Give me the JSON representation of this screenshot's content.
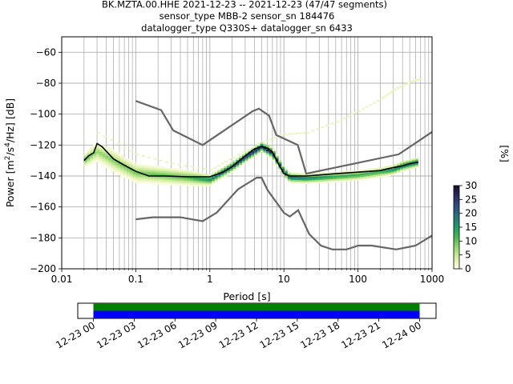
{
  "titles": [
    "BK.MZTA.00.HHE   2021-12-23 -- 2021-12-23  (47/47 segments)",
    "sensor_type MBB-2 sensor_sn 184476",
    "datalogger_type Q330S+ datalogger_sn 6433"
  ],
  "colors": {
    "nlnm_nhnm": "#666666",
    "mode_line": "#000000",
    "grid": "#b0b0b0",
    "coverage_green": "#008000",
    "coverage_blue": "#0000ff"
  },
  "colorbar": {
    "label": "[%]",
    "min": 0,
    "max": 30,
    "ticks": [
      "0",
      "5",
      "10",
      "15",
      "20",
      "25",
      "30"
    ],
    "colormap": [
      "#fefee6",
      "#d8efa6",
      "#98d873",
      "#4cb853",
      "#1f9a6a",
      "#26767a",
      "#2e4f81",
      "#2c2d63",
      "#1c0a2e"
    ]
  },
  "chart_data": {
    "type": "heatmap",
    "title": "BK.MZTA.00.HHE   2021-12-23 -- 2021-12-23  (47/47 segments)",
    "xlabel": "Period [s]",
    "ylabel_parts": [
      "Power [m",
      "2",
      "/s",
      "4",
      "/Hz] [dB]"
    ],
    "x_scale": "log",
    "xlim": [
      0.01,
      1000
    ],
    "ylim": [
      -200,
      -50
    ],
    "x_ticks": [
      {
        "value": 0.01,
        "label": "0.01"
      },
      {
        "value": 0.1,
        "label": "0.1"
      },
      {
        "value": 1,
        "label": "1"
      },
      {
        "value": 10,
        "label": "10"
      },
      {
        "value": 100,
        "label": "100"
      },
      {
        "value": 1000,
        "label": "1000"
      }
    ],
    "y_ticks": [
      {
        "value": -200,
        "label": "−200"
      },
      {
        "value": -180,
        "label": "−180"
      },
      {
        "value": -160,
        "label": "−160"
      },
      {
        "value": -140,
        "label": "−140"
      },
      {
        "value": -120,
        "label": "−120"
      },
      {
        "value": -100,
        "label": "−100"
      },
      {
        "value": -80,
        "label": "−80"
      },
      {
        "value": -60,
        "label": "−60"
      }
    ],
    "grid": true,
    "nhnm": {
      "x": [
        0.1,
        0.22,
        0.32,
        0.8,
        3.8,
        4.6,
        6.3,
        7.9,
        15.4,
        20,
        354.8,
        1000
      ],
      "y": [
        -91.5,
        -97.4,
        -110.5,
        -120,
        -98,
        -96.5,
        -101,
        -113.5,
        -120,
        -138.5,
        -126,
        -111.5
      ]
    },
    "nlnm": {
      "x": [
        0.1,
        0.17,
        0.4,
        0.8,
        1.24,
        2.4,
        4.3,
        5,
        6,
        10,
        12,
        15.6,
        21.9,
        31.6,
        45,
        70,
        101,
        154,
        328,
        600,
        1000
      ],
      "y": [
        -168,
        -166.7,
        -166.7,
        -169.2,
        -163.7,
        -148.6,
        -141.1,
        -141.1,
        -149,
        -163.8,
        -166.2,
        -162.1,
        -177.5,
        -185,
        -187.5,
        -187.5,
        -185,
        -185,
        -187.5,
        -185,
        -178.5
      ]
    },
    "mode": {
      "x": [
        0.02,
        0.023,
        0.027,
        0.03,
        0.035,
        0.04,
        0.05,
        0.07,
        0.1,
        0.15,
        0.25,
        0.5,
        1,
        1.5,
        2,
        3,
        4,
        5,
        6,
        7,
        8,
        10,
        12,
        20,
        50,
        100,
        200,
        300,
        400,
        500,
        650
      ],
      "y": [
        -130,
        -127,
        -125,
        -119,
        -121,
        -124,
        -129,
        -133,
        -137,
        -140,
        -140,
        -140.5,
        -140.5,
        -137.5,
        -134,
        -127,
        -122.5,
        -121,
        -122,
        -124.5,
        -130,
        -138.5,
        -140,
        -140,
        -138.5,
        -137.5,
        -136.5,
        -134.5,
        -133.5,
        -132,
        -131
      ]
    },
    "density_band": {
      "x": [
        0.02,
        0.03,
        0.05,
        0.1,
        0.5,
        1,
        2,
        3,
        5,
        7,
        10,
        12,
        20,
        50,
        100,
        200,
        300,
        400,
        650
      ],
      "center": [
        -130,
        -124,
        -130,
        -138,
        -141,
        -142.5,
        -134,
        -128,
        -121,
        -125,
        -137,
        -141,
        -141.5,
        -140.5,
        -139.5,
        -137.5,
        -136,
        -133.5,
        -131
      ],
      "halfwidth": [
        4,
        6,
        7,
        6,
        5,
        3.5,
        3,
        3,
        3,
        3.5,
        3,
        3,
        3,
        3,
        3,
        3,
        3,
        3,
        3
      ],
      "peak_percent": [
        12,
        8,
        9,
        10,
        12,
        18,
        26,
        28,
        30,
        28,
        24,
        22,
        20,
        15,
        14,
        14,
        18,
        22,
        22
      ]
    },
    "sparse_outliers": {
      "x": [
        0.03,
        0.1,
        0.3,
        1,
        2,
        5,
        10,
        20,
        50,
        100,
        200,
        300,
        500,
        700
      ],
      "y": [
        -112,
        -126,
        -132,
        -136,
        -128,
        -118,
        -113,
        -112,
        -105,
        -98,
        -90,
        -84,
        -79,
        -77
      ]
    },
    "time_axis": {
      "labels": [
        "12-23 00",
        "12-23 03",
        "12-23 06",
        "12-23 09",
        "12-23 12",
        "12-23 15",
        "12-23 18",
        "12-23 21",
        "12-24 00"
      ],
      "coverage": [
        {
          "start_hour": 0,
          "end_hour": 24,
          "color": "#008000"
        },
        {
          "start_hour": 0,
          "end_hour": 24,
          "color": "#0000ff"
        }
      ]
    }
  }
}
